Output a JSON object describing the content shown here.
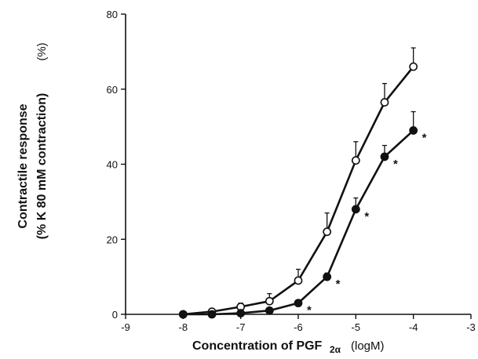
{
  "chart_data": {
    "type": "line",
    "title": "",
    "xlabel": "Concentration of PGF",
    "xlabel_sub": "2α",
    "xlabel_unit": "(logM)",
    "ylabel_line1": "Contractile response",
    "ylabel_line2": "(% K 80 mM contraction)",
    "ylabel_unit": "(%)",
    "xlim": [
      -9,
      -3
    ],
    "ylim": [
      0,
      80
    ],
    "x_ticks": [
      -9,
      -8,
      -7,
      -6,
      -5,
      -4,
      -3
    ],
    "x_tick_labels": [
      "-9",
      "-8",
      "-7",
      "-6",
      "-5",
      "-4",
      "-3"
    ],
    "y_ticks": [
      0,
      20,
      40,
      60,
      80
    ],
    "y_tick_labels": [
      "0",
      "20",
      "40",
      "60",
      "80"
    ],
    "grid": false,
    "series": [
      {
        "marker": "open-circle",
        "x": [
          -8,
          -7.5,
          -7,
          -6.5,
          -6,
          -5.5,
          -5,
          -4.5,
          -4
        ],
        "y": [
          0,
          0.7,
          2,
          3.5,
          9,
          22,
          41,
          56.5,
          66
        ],
        "err": [
          0,
          0.5,
          1,
          2,
          3,
          5,
          5,
          5,
          5
        ]
      },
      {
        "marker": "filled-circle",
        "x": [
          -8,
          -7.5,
          -7,
          -6.5,
          -6,
          -5.5,
          -5,
          -4.5,
          -4
        ],
        "y": [
          0,
          0,
          0.3,
          1,
          3,
          10,
          28,
          42,
          49
        ],
        "err": [
          0,
          0,
          0,
          0,
          0,
          1,
          3,
          3,
          5
        ],
        "significance_marker": "*",
        "significant_x": [
          -6,
          -5.5,
          -5,
          -4.5,
          -4
        ]
      }
    ]
  }
}
